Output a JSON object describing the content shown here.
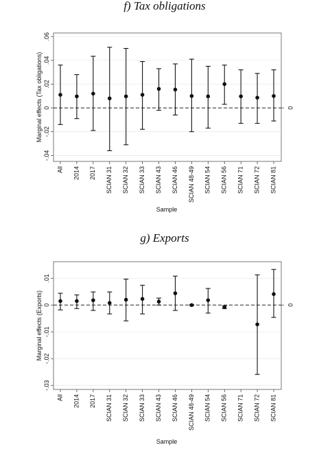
{
  "chart_data": [
    {
      "type": "errorbar",
      "title": "f) Tax obligations",
      "y_label": "Marginal effects (Tax obligations)",
      "x_label": "Sample",
      "categories": [
        "All",
        "2014",
        "2017",
        "SCIAN 31",
        "SCIAN 32",
        "SCIAN 33",
        "SCIAN 43",
        "SCIAN 46",
        "SCIAN 48-49",
        "SCIAN 54",
        "SCIAN 56",
        "SCIAN 71",
        "SCIAN 72",
        "SCIAN 81"
      ],
      "values": [
        0.011,
        0.0097,
        0.012,
        0.008,
        0.0097,
        0.011,
        0.016,
        0.0154,
        0.01,
        0.0097,
        0.02,
        0.0097,
        0.0086,
        0.01
      ],
      "lower": [
        -0.014,
        -0.009,
        -0.019,
        -0.036,
        -0.031,
        -0.018,
        -0.002,
        -0.006,
        -0.02,
        -0.017,
        0.003,
        -0.013,
        -0.013,
        -0.011
      ],
      "upper": [
        0.036,
        0.028,
        0.0434,
        0.051,
        0.05,
        0.039,
        0.033,
        0.037,
        0.041,
        0.035,
        0.036,
        0.032,
        0.029,
        0.032
      ],
      "color": "#111111",
      "ylim": [
        -0.045,
        0.063
      ],
      "yticks": [
        {
          "value": -0.04,
          "label": "-.04"
        },
        {
          "value": -0.02,
          "label": "-.02"
        },
        0,
        {
          "value": 0.02,
          "label": ".02"
        },
        {
          "value": 0.04,
          "label": ".04"
        },
        {
          "value": 0.06,
          "label": ".06"
        }
      ],
      "y2lim": [
        -0.045,
        0.063
      ],
      "y2ticks": [
        0
      ],
      "grid": true
    },
    {
      "type": "errorbar",
      "title": "g) Exports",
      "y_label": "Marginal effects (Exports)",
      "x_label": "Sample",
      "categories": [
        "All",
        "2014",
        "2017",
        "SCIAN 31",
        "SCIAN 32",
        "SCIAN 33",
        "SCIAN 43",
        "SCIAN 46",
        "SCIAN 48-49",
        "SCIAN 54",
        "SCIAN 56",
        "SCIAN 71",
        "SCIAN 72",
        "SCIAN 81"
      ],
      "values": [
        0.0015,
        0.0015,
        0.0018,
        0.0008,
        0.002,
        0.0023,
        0.0013,
        0.0044,
        0,
        0.0018,
        -0.0008,
        null,
        -0.0072,
        0.0041
      ],
      "lower": [
        -0.0018,
        -0.0013,
        -0.002,
        -0.0033,
        -0.0059,
        -0.0033,
        0,
        -0.002,
        -0.0002,
        -0.003,
        -0.0013,
        null,
        -0.0259,
        -0.0046
      ],
      "upper": [
        0.0044,
        0.0038,
        0.0049,
        0.0049,
        0.0097,
        0.0074,
        0.0026,
        0.0108,
        0.0002,
        0.0062,
        -0.0003,
        null,
        0.0113,
        0.0133
      ],
      "color": "#111111",
      "ylim": [
        -0.0315,
        0.0162
      ],
      "yticks": [
        {
          "value": -0.03,
          "label": "-.03"
        },
        {
          "value": -0.02,
          "label": "-.02"
        },
        {
          "value": -0.01,
          "label": "-.01"
        },
        0,
        {
          "value": 0.01,
          "label": ".01"
        }
      ],
      "y2lim": [
        -0.0315,
        0.0162
      ],
      "y2ticks": [
        0
      ],
      "grid": true
    }
  ]
}
